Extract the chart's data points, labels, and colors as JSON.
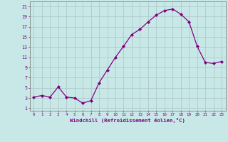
{
  "x_data": [
    0,
    1,
    2,
    3,
    4,
    5,
    6,
    7,
    8,
    9,
    10,
    11,
    12,
    13,
    14,
    15,
    16,
    17,
    18,
    19,
    20,
    21,
    22,
    23
  ],
  "y_data": [
    3.2,
    3.5,
    3.2,
    5.2,
    3.2,
    3.0,
    2.0,
    2.5,
    6.0,
    8.5,
    11.0,
    13.2,
    15.5,
    16.5,
    18.0,
    19.3,
    20.2,
    20.5,
    19.5,
    18.0,
    13.2,
    10.0,
    9.8,
    10.2
  ],
  "line_color": "#800080",
  "marker_color": "#800080",
  "bg_color": "#c8e8e8",
  "grid_color": "#b0c8c8",
  "xlabel": "Windchill (Refroidissement éolien,°C)",
  "ylabel_ticks": [
    1,
    3,
    5,
    7,
    9,
    11,
    13,
    15,
    17,
    19,
    21
  ],
  "xlim": [
    -0.5,
    23.5
  ],
  "ylim": [
    0.5,
    22
  ],
  "xticks": [
    0,
    1,
    2,
    3,
    4,
    5,
    6,
    7,
    8,
    9,
    10,
    11,
    12,
    13,
    14,
    15,
    16,
    17,
    18,
    19,
    20,
    21,
    22,
    23
  ],
  "axis_color": "#800080",
  "spine_color": "#808080"
}
